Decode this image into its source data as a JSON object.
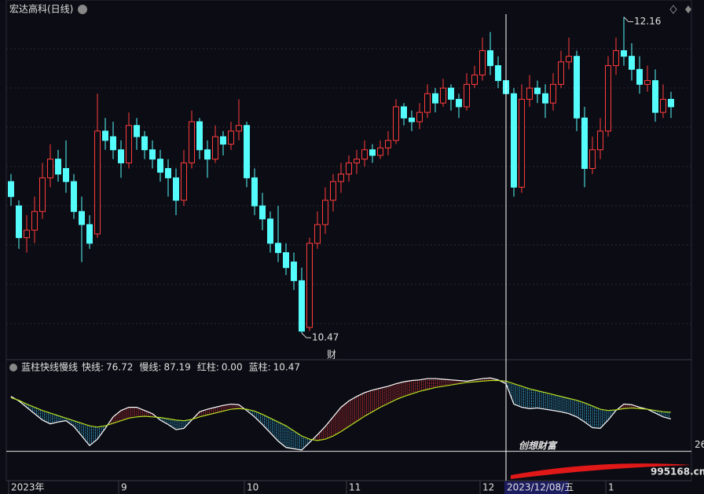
{
  "chart_data": {
    "type": "candlestick",
    "title": "宏达高科(日线)",
    "ylim": [
      10.34,
      12.23
    ],
    "candles": [
      [
        11.28,
        11.32,
        11.15,
        11.2
      ],
      [
        11.15,
        11.18,
        10.92,
        10.98
      ],
      [
        10.98,
        11.1,
        10.9,
        11.02
      ],
      [
        11.02,
        11.2,
        10.95,
        11.12
      ],
      [
        11.12,
        11.38,
        11.08,
        11.3
      ],
      [
        11.3,
        11.48,
        11.25,
        11.4
      ],
      [
        11.4,
        11.45,
        11.28,
        11.32
      ],
      [
        11.35,
        11.5,
        11.22,
        11.28
      ],
      [
        11.28,
        11.32,
        11.08,
        11.12
      ],
      [
        11.12,
        11.2,
        10.85,
        11.05
      ],
      [
        11.05,
        11.1,
        10.92,
        10.95
      ],
      [
        11.0,
        11.75,
        10.98,
        11.55
      ],
      [
        11.55,
        11.62,
        11.45,
        11.5
      ],
      [
        11.52,
        11.6,
        11.4,
        11.45
      ],
      [
        11.45,
        11.5,
        11.3,
        11.38
      ],
      [
        11.38,
        11.65,
        11.35,
        11.58
      ],
      [
        11.58,
        11.62,
        11.45,
        11.52
      ],
      [
        11.52,
        11.55,
        11.4,
        11.45
      ],
      [
        11.45,
        11.5,
        11.35,
        11.4
      ],
      [
        11.4,
        11.45,
        11.28,
        11.33
      ],
      [
        11.35,
        11.4,
        11.2,
        11.3
      ],
      [
        11.3,
        11.35,
        11.1,
        11.18
      ],
      [
        11.18,
        11.45,
        11.15,
        11.38
      ],
      [
        11.38,
        11.66,
        11.35,
        11.6
      ],
      [
        11.6,
        11.62,
        11.4,
        11.45
      ],
      [
        11.45,
        11.5,
        11.3,
        11.4
      ],
      [
        11.4,
        11.58,
        11.38,
        11.52
      ],
      [
        11.52,
        11.55,
        11.42,
        11.48
      ],
      [
        11.48,
        11.6,
        11.45,
        11.55
      ],
      [
        11.55,
        11.72,
        11.5,
        11.58
      ],
      [
        11.58,
        11.6,
        11.25,
        11.3
      ],
      [
        11.3,
        11.35,
        11.1,
        11.15
      ],
      [
        11.15,
        11.22,
        11.02,
        11.08
      ],
      [
        11.08,
        11.12,
        10.9,
        10.95
      ],
      [
        10.95,
        11.15,
        10.85,
        10.9
      ],
      [
        10.9,
        10.95,
        10.78,
        10.82
      ],
      [
        10.85,
        10.9,
        10.7,
        10.75
      ],
      [
        10.75,
        10.82,
        10.47,
        10.48
      ],
      [
        10.5,
        10.98,
        10.48,
        10.95
      ],
      [
        10.95,
        11.12,
        10.92,
        11.05
      ],
      [
        11.05,
        11.25,
        11.0,
        11.18
      ],
      [
        11.18,
        11.32,
        11.12,
        11.28
      ],
      [
        11.28,
        11.38,
        11.22,
        11.32
      ],
      [
        11.32,
        11.42,
        11.28,
        11.38
      ],
      [
        11.38,
        11.45,
        11.32,
        11.4
      ],
      [
        11.4,
        11.5,
        11.36,
        11.45
      ],
      [
        11.45,
        11.48,
        11.38,
        11.42
      ],
      [
        11.42,
        11.5,
        11.4,
        11.46
      ],
      [
        11.46,
        11.55,
        11.42,
        11.5
      ],
      [
        11.5,
        11.72,
        11.48,
        11.68
      ],
      [
        11.68,
        11.7,
        11.58,
        11.62
      ],
      [
        11.62,
        11.66,
        11.55,
        11.6
      ],
      [
        11.6,
        11.7,
        11.56,
        11.65
      ],
      [
        11.65,
        11.8,
        11.62,
        11.75
      ],
      [
        11.75,
        11.78,
        11.65,
        11.7
      ],
      [
        11.7,
        11.83,
        11.68,
        11.78
      ],
      [
        11.78,
        11.8,
        11.66,
        11.72
      ],
      [
        11.72,
        11.75,
        11.62,
        11.68
      ],
      [
        11.68,
        11.86,
        11.66,
        11.8
      ],
      [
        11.8,
        11.9,
        11.78,
        11.85
      ],
      [
        11.85,
        12.05,
        11.82,
        11.98
      ],
      [
        11.98,
        12.08,
        11.85,
        11.9
      ],
      [
        11.9,
        11.95,
        11.78,
        11.82
      ],
      [
        11.82,
        11.88,
        11.7,
        11.75
      ],
      [
        11.75,
        11.78,
        11.2,
        11.25
      ],
      [
        11.25,
        11.8,
        11.22,
        11.72
      ],
      [
        11.72,
        11.85,
        11.68,
        11.78
      ],
      [
        11.78,
        11.82,
        11.7,
        11.75
      ],
      [
        11.75,
        11.8,
        11.62,
        11.7
      ],
      [
        11.7,
        11.86,
        11.66,
        11.8
      ],
      [
        11.8,
        11.98,
        11.78,
        11.92
      ],
      [
        11.92,
        12.05,
        11.88,
        11.95
      ],
      [
        11.95,
        11.98,
        11.55,
        11.62
      ],
      [
        11.62,
        11.68,
        11.25,
        11.35
      ],
      [
        11.35,
        11.52,
        11.32,
        11.45
      ],
      [
        11.45,
        11.62,
        11.4,
        11.55
      ],
      [
        11.55,
        11.95,
        11.52,
        11.9
      ],
      [
        11.9,
        12.05,
        11.85,
        11.98
      ],
      [
        11.98,
        12.16,
        11.9,
        11.95
      ],
      [
        11.95,
        12.02,
        11.82,
        11.88
      ],
      [
        11.88,
        11.95,
        11.75,
        11.8
      ],
      [
        11.8,
        11.9,
        11.76,
        11.82
      ],
      [
        11.82,
        11.88,
        11.6,
        11.65
      ],
      [
        11.65,
        11.8,
        11.62,
        11.72
      ],
      [
        11.72,
        11.76,
        11.62,
        11.68
      ]
    ],
    "up_color": "#ff3c3c",
    "down_color": "#54fcfc",
    "high_label": 12.16,
    "low_label": 10.47,
    "marker": "财",
    "categories": [
      "2023年",
      null,
      null,
      null,
      null,
      null,
      null,
      null,
      null,
      null,
      null,
      null,
      null,
      null,
      "9",
      null,
      null,
      null,
      null,
      null,
      null,
      null,
      null,
      null,
      null,
      null,
      null,
      null,
      null,
      null,
      "10",
      null,
      null,
      null,
      null,
      null,
      null,
      null,
      null,
      null,
      null,
      null,
      null,
      "11",
      null,
      null,
      null,
      null,
      null,
      null,
      null,
      null,
      null,
      null,
      null,
      null,
      null,
      null,
      null,
      null,
      "12",
      null,
      null,
      null,
      null,
      null,
      null,
      null,
      null,
      null,
      null,
      null,
      null,
      null,
      null,
      null,
      "1",
      null,
      null,
      null,
      null,
      null,
      null,
      null,
      null
    ],
    "cursor_label": "2023/12/08/五",
    "indicator": {
      "name": "蓝柱快线慢线",
      "ylim": [
        -20,
        145
      ],
      "legend": [
        {
          "label": "快线:",
          "text": "76.72",
          "color": "#ffffff"
        },
        {
          "label": "慢线:",
          "text": "87.19",
          "color": "#40e040"
        },
        {
          "label": "红柱:",
          "text": "0.00",
          "color": "#e040e0"
        },
        {
          "label": "蓝柱:",
          "text": "10.47",
          "color": "#40e040"
        }
      ],
      "reference": 26,
      "series": [
        {
          "name": "快线",
          "color": "#ffffff",
          "values": [
            112,
            105,
            95,
            85,
            75,
            69,
            72,
            74,
            65,
            50,
            35,
            45,
            62,
            80,
            90,
            95,
            95,
            90,
            85,
            75,
            68,
            60,
            62,
            75,
            88,
            92,
            95,
            98,
            100,
            99,
            90,
            80,
            68,
            55,
            42,
            32,
            30,
            28,
            40,
            52,
            65,
            80,
            95,
            105,
            112,
            118,
            122,
            125,
            128,
            132,
            135,
            137,
            138,
            140,
            140,
            139,
            138,
            137,
            136,
            138,
            140,
            141,
            138,
            132,
            100,
            95,
            93,
            94,
            92,
            90,
            88,
            85,
            80,
            72,
            63,
            62,
            75,
            90,
            100,
            99,
            95,
            92,
            86,
            80,
            76.72
          ]
        },
        {
          "name": "慢线",
          "color": "#b8e020",
          "values": [
            110,
            106,
            100,
            95,
            90,
            86,
            82,
            78,
            74,
            70,
            66,
            64,
            66,
            70,
            74,
            78,
            80,
            81,
            80,
            79,
            77,
            75,
            74,
            76,
            80,
            83,
            86,
            89,
            92,
            93,
            92,
            89,
            84,
            78,
            72,
            66,
            58,
            50,
            45,
            43,
            45,
            50,
            57,
            65,
            73,
            81,
            88,
            95,
            101,
            107,
            112,
            116,
            120,
            123,
            126,
            128,
            130,
            132,
            134,
            135,
            136,
            137,
            137,
            136,
            132,
            128,
            124,
            121,
            118,
            115,
            112,
            109,
            106,
            102,
            97,
            92,
            90,
            91,
            93,
            94,
            93,
            92,
            90,
            88,
            87.19
          ]
        }
      ]
    },
    "watermark": {
      "text": "创想财富",
      "url": "995168.cn"
    }
  }
}
